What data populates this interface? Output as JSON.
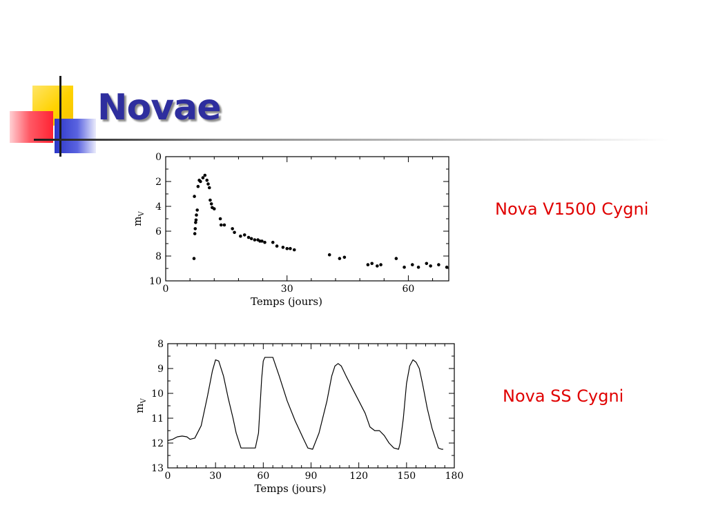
{
  "slide": {
    "title": "Novae",
    "captions": [
      "Nova V1500 Cygni",
      "Nova SS Cygni"
    ]
  },
  "colors": {
    "title": "#2e2e9e",
    "caption": "#e00000",
    "deco_yellow": "#ffd200",
    "deco_blue": "#2b36c8",
    "deco_red": "#ff2333"
  },
  "chart_data": [
    {
      "type": "scatter",
      "xlabel": "Temps (jours)",
      "ylabel": "m",
      "ylabel_sub": "V",
      "xlim": [
        0,
        70
      ],
      "ylim": [
        0,
        10
      ],
      "y_inverted": true,
      "xticks": [
        0,
        30,
        60
      ],
      "yticks": [
        0,
        2,
        4,
        6,
        8,
        10
      ],
      "series": [
        {
          "x": [
            7.0,
            7.1,
            7.2,
            7.3,
            7.4,
            7.5,
            7.6,
            7.8,
            8.0,
            8.3,
            8.6,
            9.2,
            9.7,
            10.2,
            10.5,
            10.8,
            11.0,
            11.3,
            11.5,
            12.0,
            13.5,
            13.7,
            14.5,
            16.5,
            17.0,
            18.5,
            19.5,
            20.5,
            21.2,
            22.0,
            22.8,
            23.3,
            23.8,
            24.5,
            26.5,
            27.5,
            29.0,
            30.0,
            30.8,
            31.8,
            40.5,
            43.0,
            44.2,
            50.0,
            51.0,
            52.3,
            53.2,
            57.0,
            59.0,
            61.0,
            62.5,
            64.5,
            65.5,
            67.5,
            69.5
          ],
          "y": [
            8.2,
            3.2,
            6.2,
            5.8,
            5.3,
            5.1,
            4.7,
            4.3,
            2.4,
            1.9,
            2.0,
            1.7,
            1.5,
            1.9,
            2.2,
            2.5,
            3.5,
            3.8,
            4.1,
            4.2,
            5.0,
            5.5,
            5.5,
            5.8,
            6.1,
            6.4,
            6.3,
            6.5,
            6.6,
            6.7,
            6.7,
            6.8,
            6.8,
            6.9,
            6.9,
            7.2,
            7.3,
            7.4,
            7.4,
            7.5,
            7.9,
            8.2,
            8.1,
            8.7,
            8.6,
            8.8,
            8.7,
            8.2,
            8.9,
            8.7,
            8.9,
            8.6,
            8.8,
            8.7,
            8.9
          ]
        }
      ]
    },
    {
      "type": "line",
      "xlabel": "Temps (jours)",
      "ylabel": "m",
      "ylabel_sub": "V",
      "xlim": [
        0,
        180
      ],
      "ylim": [
        8,
        13
      ],
      "y_inverted": true,
      "xticks": [
        0,
        30,
        60,
        90,
        120,
        150,
        180
      ],
      "yticks": [
        8,
        9,
        10,
        11,
        12,
        13
      ],
      "series": [
        {
          "x": [
            0,
            3,
            6,
            9,
            12,
            14,
            17,
            21,
            25,
            28,
            30,
            32,
            35,
            38,
            41,
            43,
            46,
            49,
            52,
            55,
            57,
            58,
            59,
            60,
            61,
            63,
            66,
            70,
            75,
            80,
            85,
            88,
            91,
            95,
            100,
            103,
            105,
            107,
            109,
            112,
            116,
            120,
            124,
            127,
            130,
            133,
            136,
            139,
            142,
            145,
            146,
            148,
            150,
            152,
            154,
            156,
            158,
            160,
            163,
            166,
            168,
            170,
            172,
            173
          ],
          "y": [
            11.9,
            11.85,
            11.75,
            11.72,
            11.75,
            11.85,
            11.8,
            11.3,
            10.1,
            9.1,
            8.65,
            8.7,
            9.3,
            10.2,
            11.0,
            11.6,
            12.2,
            12.2,
            12.2,
            12.2,
            11.6,
            10.5,
            9.4,
            8.7,
            8.55,
            8.55,
            8.55,
            9.3,
            10.3,
            11.1,
            11.8,
            12.2,
            12.25,
            11.6,
            10.3,
            9.3,
            8.9,
            8.8,
            8.9,
            9.3,
            9.8,
            10.3,
            10.8,
            11.35,
            11.5,
            11.5,
            11.7,
            12.0,
            12.2,
            12.25,
            12.0,
            11.0,
            9.6,
            8.9,
            8.65,
            8.75,
            9.0,
            9.6,
            10.6,
            11.4,
            11.8,
            12.2,
            12.25,
            12.25
          ]
        }
      ]
    }
  ]
}
